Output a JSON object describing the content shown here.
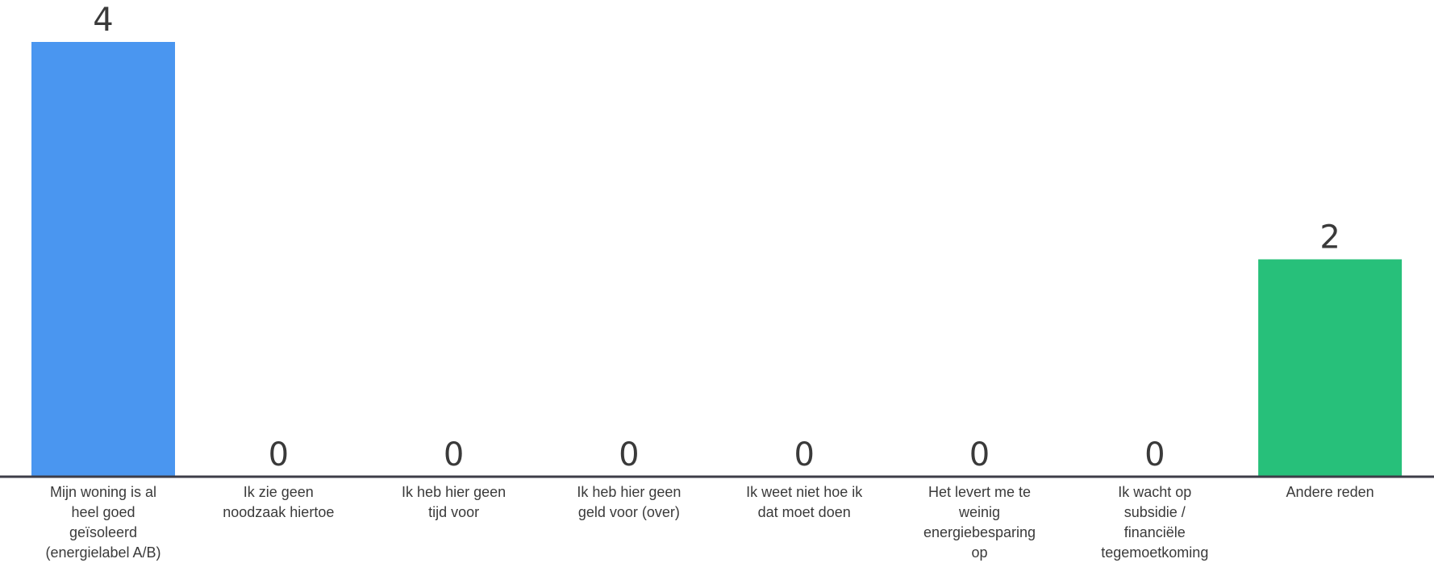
{
  "chart_data": {
    "type": "bar",
    "categories": [
      "Mijn woning is al heel goed geïsoleerd (energielabel A/B)",
      "Ik zie geen noodzaak hiertoe",
      "Ik heb hier geen tijd voor",
      "Ik heb hier geen geld voor (over)",
      "Ik weet niet hoe ik dat moet doen",
      "Het levert me te weinig energiebesparing op",
      "Ik wacht op subsidie / financiële tegemoetkoming",
      "Andere reden"
    ],
    "category_lines": [
      [
        "Mijn woning is al",
        "heel goed",
        "geïsoleerd",
        "(energielabel A/B)"
      ],
      [
        "Ik zie geen",
        "noodzaak hiertoe"
      ],
      [
        "Ik heb hier geen",
        "tijd voor"
      ],
      [
        "Ik heb hier geen",
        "geld voor (over)"
      ],
      [
        "Ik weet niet hoe ik",
        "dat moet doen"
      ],
      [
        "Het levert me te",
        "weinig",
        "energiebesparing",
        "op"
      ],
      [
        "Ik wacht op",
        "subsidie /",
        "financiële",
        "tegemoetkoming"
      ],
      [
        "Andere reden"
      ]
    ],
    "values": [
      4,
      0,
      0,
      0,
      0,
      0,
      0,
      2
    ],
    "bar_colors": [
      "#4a96f0",
      "#4a96f0",
      "#4a96f0",
      "#4a96f0",
      "#4a96f0",
      "#4a96f0",
      "#4a96f0",
      "#27c07a"
    ],
    "data_labels": [
      "4",
      "0",
      "0",
      "0",
      "0",
      "0",
      "0",
      "2"
    ],
    "title": "",
    "xlabel": "",
    "ylabel": "",
    "ylim": [
      0,
      4
    ],
    "grid": false,
    "axis_color": "#3d3d48"
  }
}
